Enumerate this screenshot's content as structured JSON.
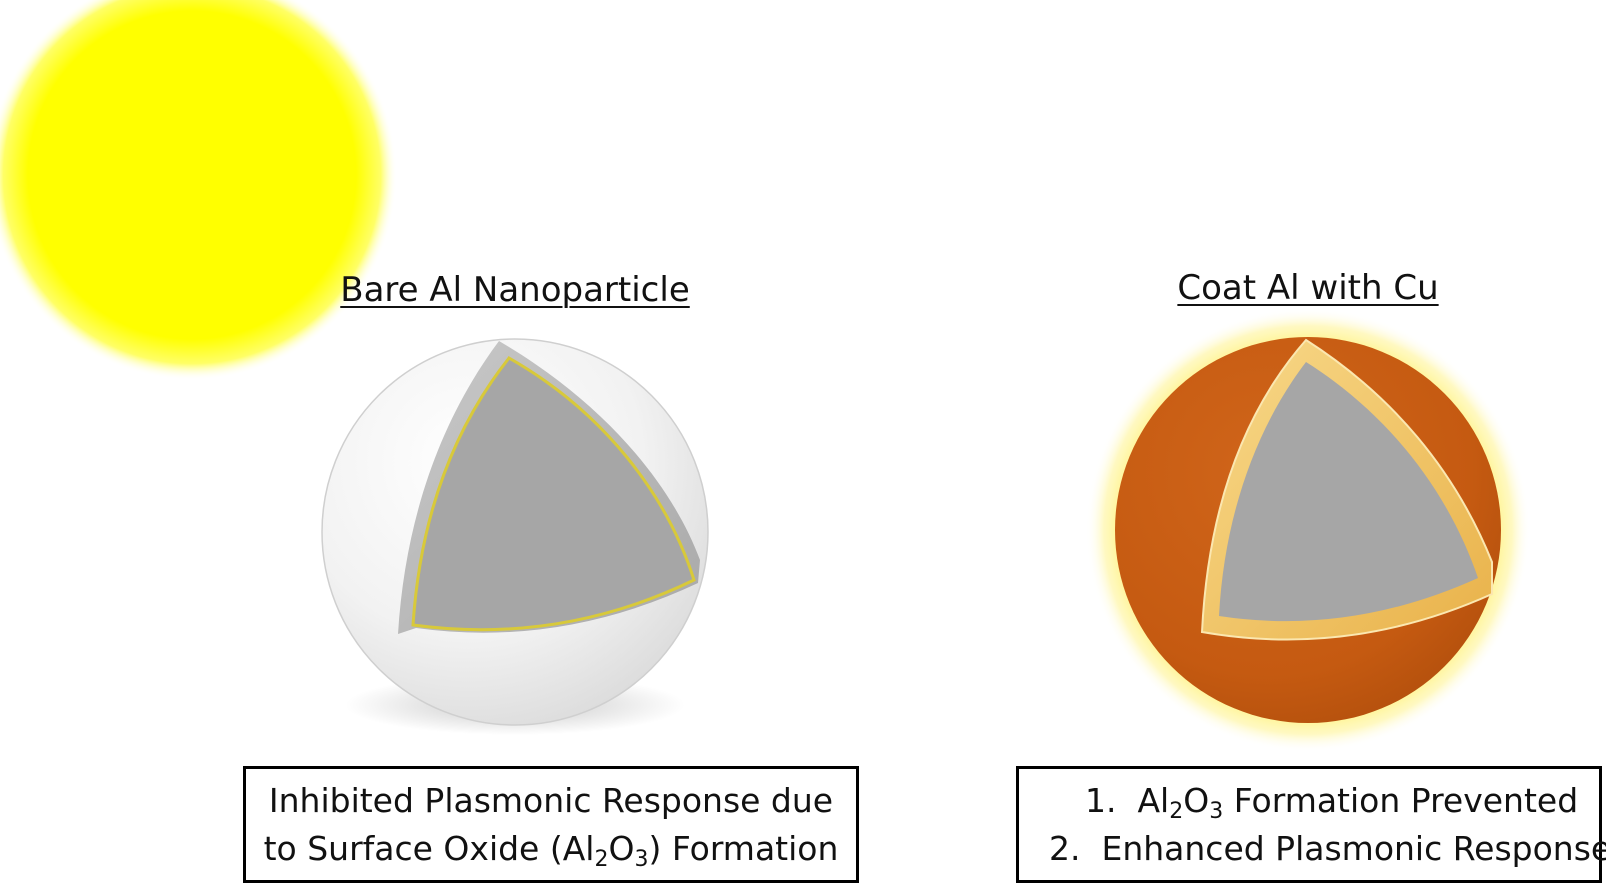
{
  "particles": {
    "bare": {
      "title": "Bare Al Nanoparticle",
      "caption": {
        "line1": "Inhibited Plasmonic Response due",
        "line2_before": "to Surface Oxide (Al",
        "line2_sub1": "2",
        "line2_mid": "O",
        "line2_sub2": "3",
        "line2_after": ") Formation"
      },
      "shell_color": "#eeeeee",
      "oxide_line_color": "#d8c93a",
      "core_color": "#a6a6a6"
    },
    "coated": {
      "title": "Coat Al with Cu",
      "caption": {
        "item1_num": "1.",
        "item1_before": "Al",
        "item1_sub1": "2",
        "item1_mid": "O",
        "item1_sub2": "3",
        "item1_after": " Formation Prevented",
        "item2_num": "2.",
        "item2_text": "Enhanced Plasmonic Response"
      },
      "shell_color": "#c55a11",
      "rim_color": "#f2c45a",
      "glow_color": "#fff27a",
      "core_color": "#a6a6a6"
    }
  },
  "light_source": {
    "icon": "sun-icon",
    "color": "#ffff00"
  }
}
